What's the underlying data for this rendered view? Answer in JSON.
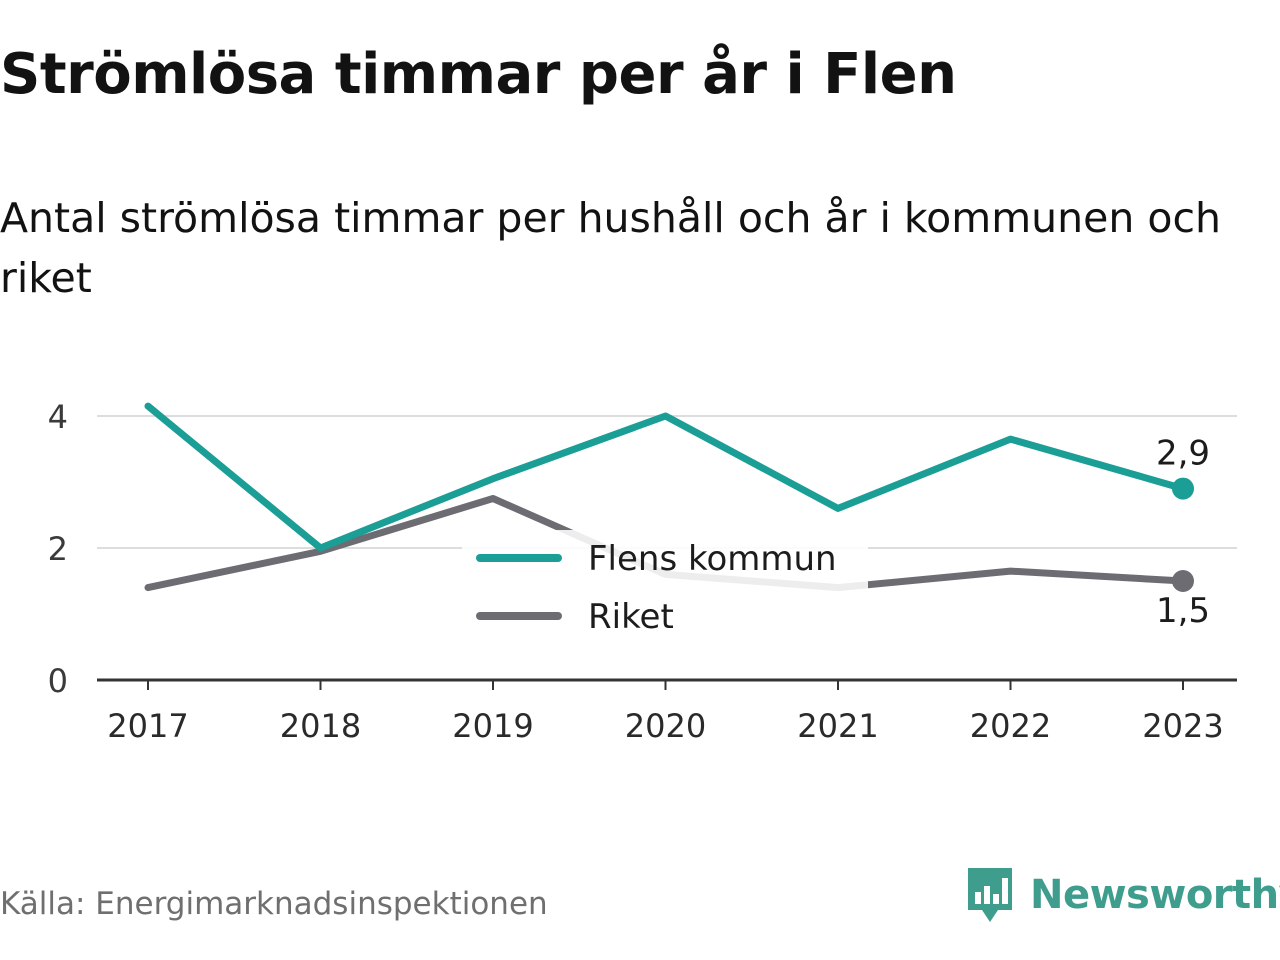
{
  "header": {
    "title": "Strömlösa timmar per år i Flen",
    "subtitle": "Antal strömlösa timmar per hushåll och år i kommunen och riket"
  },
  "footer": {
    "source": "Källa: Energimarknadsinspektionen",
    "brand": "Newsworthy"
  },
  "colors": {
    "flen": "#1a9e96",
    "riket": "#6d6c72",
    "grid": "#dddddd",
    "axis": "#333333",
    "brand": "#3f9d8e"
  },
  "chart_data": {
    "type": "line",
    "x": [
      "2017",
      "2018",
      "2019",
      "2020",
      "2021",
      "2022",
      "2023"
    ],
    "ylim": [
      0,
      4.2
    ],
    "yticks": [
      "0",
      "2",
      "4"
    ],
    "grid": true,
    "legend_position": "center",
    "series": [
      {
        "name": "Flens kommun",
        "color": "#1a9e96",
        "values": [
          4.15,
          2.0,
          3.05,
          4.0,
          2.6,
          3.65,
          2.9
        ],
        "end_label": "2,9"
      },
      {
        "name": "Riket",
        "color": "#6d6c72",
        "values": [
          1.4,
          1.95,
          2.75,
          1.6,
          1.4,
          1.65,
          1.5
        ],
        "end_label": "1,5"
      }
    ]
  }
}
